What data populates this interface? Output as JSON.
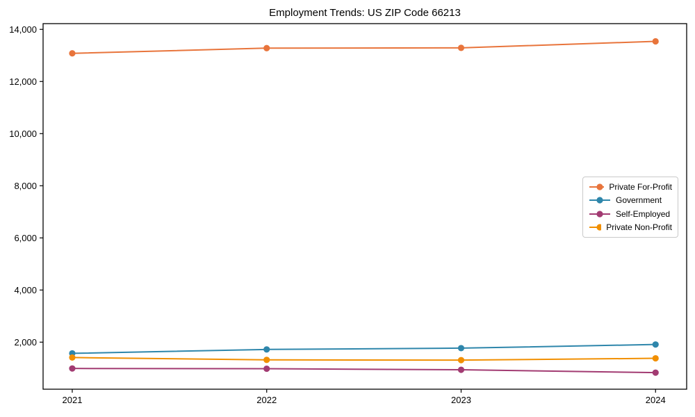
{
  "figure": {
    "background": "#ffffff",
    "axis_color": "#000000",
    "text_color": "#000000",
    "legend_border_color": "#c9c9c9"
  },
  "chart_data": {
    "type": "line",
    "title": "Employment Trends: US ZIP Code 66213",
    "xlabel": "",
    "ylabel": "",
    "x": [
      2021,
      2022,
      2023,
      2024
    ],
    "x_tick_labels": [
      "2021",
      "2022",
      "2023",
      "2024"
    ],
    "yticks": [
      2000,
      4000,
      6000,
      8000,
      10000,
      12000,
      14000
    ],
    "ytick_labels": [
      "2,000",
      "4,000",
      "6,000",
      "8,000",
      "10,000",
      "12,000",
      "14,000"
    ],
    "xlim": [
      2020.85,
      2024.16
    ],
    "ylim": [
      195,
      14220
    ],
    "grid": false,
    "legend_position": "center-right",
    "series": [
      {
        "name": "Private For-Profit",
        "color": "#E8743B",
        "values": [
          13080,
          13280,
          13290,
          13540
        ]
      },
      {
        "name": "Government",
        "color": "#2E86AB",
        "values": [
          1570,
          1720,
          1770,
          1910
        ]
      },
      {
        "name": "Self-Employed",
        "color": "#A23B72",
        "values": [
          990,
          980,
          940,
          830
        ]
      },
      {
        "name": "Private Non-Profit",
        "color": "#F18F01",
        "values": [
          1410,
          1320,
          1310,
          1380
        ]
      }
    ]
  }
}
